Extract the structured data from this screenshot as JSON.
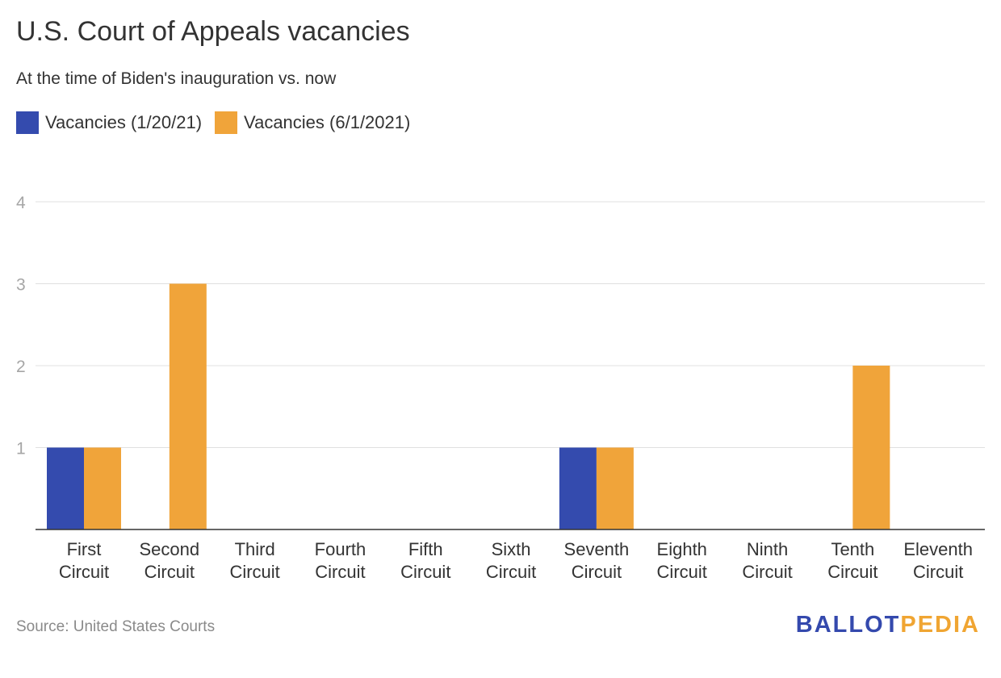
{
  "title": "U.S. Court of Appeals vacancies",
  "subtitle": "At the time of Biden's inauguration vs. now",
  "source": "Source: United States Courts",
  "logo": {
    "part1": "BALLOT",
    "part2": "PEDIA",
    "color1": "#3449ad",
    "color2": "#f0a532"
  },
  "chart_data": {
    "type": "bar",
    "categories": [
      [
        "First",
        "Circuit"
      ],
      [
        "Second",
        "Circuit"
      ],
      [
        "Third",
        "Circuit"
      ],
      [
        "Fourth",
        "Circuit"
      ],
      [
        "Fifth",
        "Circuit"
      ],
      [
        "Sixth",
        "Circuit"
      ],
      [
        "Seventh",
        "Circuit"
      ],
      [
        "Eighth",
        "Circuit"
      ],
      [
        "Ninth",
        "Circuit"
      ],
      [
        "Tenth",
        "Circuit"
      ],
      [
        "Eleventh",
        "Circuit"
      ]
    ],
    "series": [
      {
        "name": "Vacancies (1/20/21)",
        "color": "#344bae",
        "values": [
          1,
          0,
          0,
          0,
          0,
          0,
          1,
          0,
          0,
          0,
          0
        ]
      },
      {
        "name": "Vacancies (6/1/2021)",
        "color": "#f0a43a",
        "values": [
          1,
          3,
          0,
          0,
          0,
          0,
          1,
          0,
          0,
          2,
          0
        ]
      }
    ],
    "ylim": [
      0,
      4
    ],
    "yticks": [
      1,
      2,
      3,
      4
    ],
    "grid": true,
    "legend_position": "top-left"
  }
}
